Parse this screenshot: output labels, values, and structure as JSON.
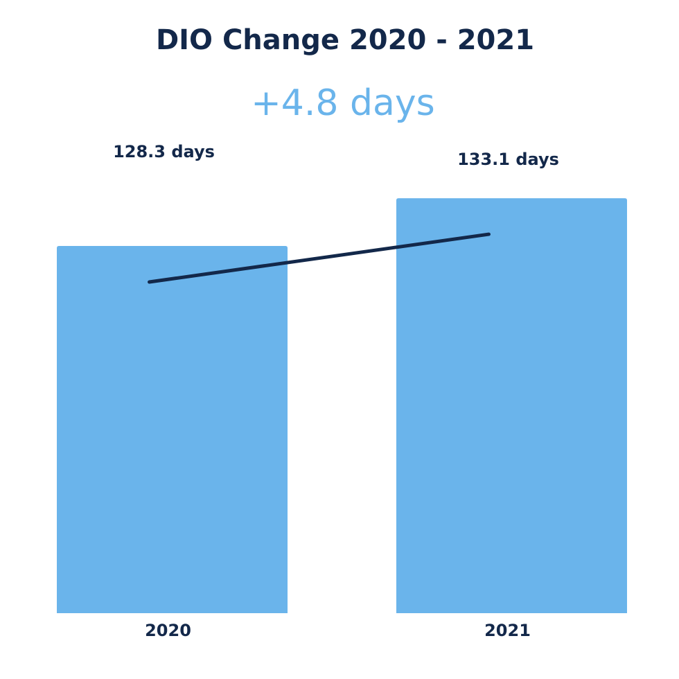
{
  "chart_data": {
    "type": "bar",
    "title": "DIO Change 2020 - 2021",
    "subtitle": "+4.8 days",
    "categories": [
      "2020",
      "2021"
    ],
    "values": [
      128.3,
      133.1
    ],
    "value_labels": [
      "128.3 days",
      "133.1 days"
    ],
    "color": "#6ab4eb",
    "line_color": "#13284a",
    "ylim": [
      91.4,
      137.7
    ]
  }
}
